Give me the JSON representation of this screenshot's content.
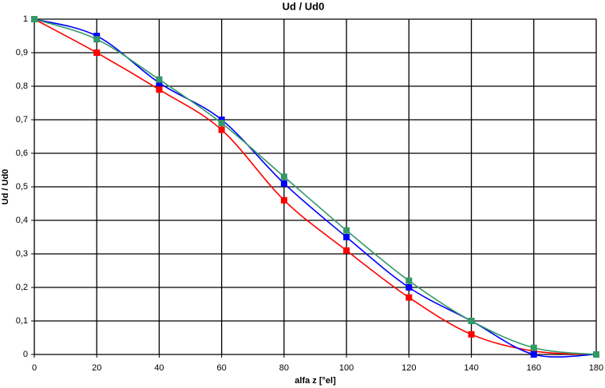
{
  "chart_data": {
    "type": "line",
    "title": "Ud / Ud0",
    "x_label": "alfa z [°el]",
    "y_label": "Ud / Ud0",
    "x": [
      0,
      20,
      40,
      60,
      80,
      100,
      120,
      140,
      160,
      180
    ],
    "series": [
      {
        "color": "#ff0000",
        "values": [
          1,
          0.9,
          0.79,
          0.67,
          0.46,
          0.31,
          0.17,
          0.06,
          0.01,
          0
        ]
      },
      {
        "color": "#0000ff",
        "values": [
          1,
          0.95,
          0.81,
          0.7,
          0.51,
          0.35,
          0.2,
          0.1,
          0.0,
          0
        ]
      },
      {
        "color": "#339966",
        "values": [
          1,
          0.94,
          0.82,
          0.69,
          0.53,
          0.37,
          0.22,
          0.1,
          0.02,
          0
        ]
      }
    ],
    "xlim": [
      0,
      180
    ],
    "xticks": [
      0,
      20,
      40,
      60,
      80,
      100,
      120,
      140,
      160,
      180
    ],
    "ylim": [
      0,
      1
    ],
    "yticks": [
      0,
      {
        "value": 0.1,
        "label": "0,1"
      },
      {
        "value": 0.2,
        "label": "0,2"
      },
      {
        "value": 0.3,
        "label": "0,3"
      },
      {
        "value": 0.4,
        "label": "0,4"
      },
      {
        "value": 0.5,
        "label": "0,5"
      },
      {
        "value": 0.6,
        "label": "0,6"
      },
      {
        "value": 0.7,
        "label": "0,7"
      },
      {
        "value": 0.8,
        "label": "0,8"
      },
      {
        "value": 0.9,
        "label": "0,9"
      },
      1
    ],
    "grid": true
  }
}
